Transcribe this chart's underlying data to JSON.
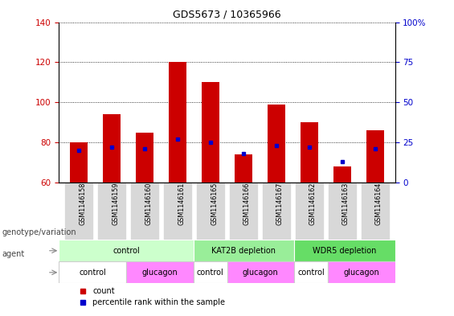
{
  "title": "GDS5673 / 10365966",
  "samples": [
    "GSM1146158",
    "GSM1146159",
    "GSM1146160",
    "GSM1146161",
    "GSM1146165",
    "GSM1146166",
    "GSM1146167",
    "GSM1146162",
    "GSM1146163",
    "GSM1146164"
  ],
  "counts": [
    80,
    94,
    85,
    120,
    110,
    74,
    99,
    90,
    68,
    86
  ],
  "percentile_ranks": [
    20,
    22,
    21,
    27,
    25,
    18,
    23,
    22,
    13,
    21
  ],
  "ylim_left": [
    60,
    140
  ],
  "ylim_right": [
    0,
    100
  ],
  "yticks_left": [
    60,
    80,
    100,
    120,
    140
  ],
  "yticks_right": [
    0,
    25,
    50,
    75,
    100
  ],
  "left_tick_color": "#cc0000",
  "right_tick_color": "#0000cc",
  "bar_color": "#cc0000",
  "blue_marker_color": "#0000cc",
  "genotype_groups": [
    {
      "label": "control",
      "start": 0,
      "end": 4,
      "color": "#ccffcc"
    },
    {
      "label": "KAT2B depletion",
      "start": 4,
      "end": 7,
      "color": "#99ee99"
    },
    {
      "label": "WDR5 depletion",
      "start": 7,
      "end": 10,
      "color": "#66dd66"
    }
  ],
  "agent_groups": [
    {
      "label": "control",
      "start": 0,
      "end": 2,
      "color": "#ffffff"
    },
    {
      "label": "glucagon",
      "start": 2,
      "end": 4,
      "color": "#ff88ff"
    },
    {
      "label": "control",
      "start": 4,
      "end": 5,
      "color": "#ffffff"
    },
    {
      "label": "glucagon",
      "start": 5,
      "end": 7,
      "color": "#ff88ff"
    },
    {
      "label": "control",
      "start": 7,
      "end": 8,
      "color": "#ffffff"
    },
    {
      "label": "glucagon",
      "start": 8,
      "end": 10,
      "color": "#ff88ff"
    }
  ],
  "legend_count_label": "count",
  "legend_percentile_label": "percentile rank within the sample",
  "row_label_genotype": "genotype/variation",
  "row_label_agent": "agent",
  "bar_width": 0.55
}
